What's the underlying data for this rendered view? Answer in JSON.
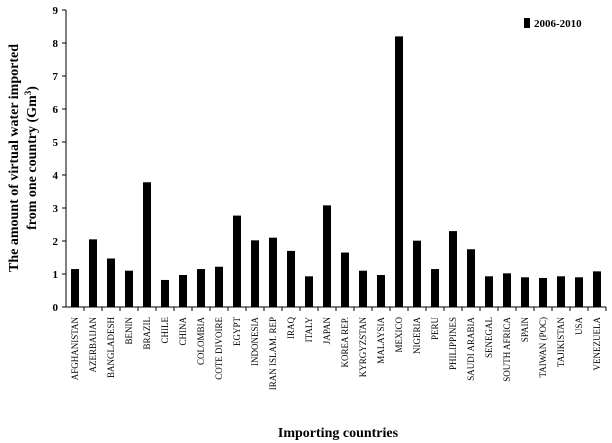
{
  "chart_data": {
    "type": "bar",
    "title": "",
    "xlabel": "Importing countries",
    "ylabel_line1": "The amount of virtual water imported",
    "ylabel_line2_prefix": "from one country (Gm",
    "ylabel_line2_sup": "3",
    "ylabel_line2_suffix": ")",
    "ylim": [
      0,
      9
    ],
    "yticks": [
      "0",
      "1",
      "2",
      "3",
      "4",
      "5",
      "6",
      "7",
      "8",
      "9"
    ],
    "grid": false,
    "legend_position": "top-right",
    "bar_color": "#000000",
    "categories": [
      "AFGHANISTAN",
      "AZERBAIJAN",
      "BANGLADESH",
      "BENIN",
      "BRAZIL",
      "CHILE",
      "CHINA",
      "COLOMBIA",
      "COTE DIVOIRE",
      "EGYPT",
      "INDONESIA",
      "IRAN ISLAM. REP",
      "IRAQ",
      "ITALY",
      "JAPAN",
      "KOREA REP.",
      "KYRGYZSTAN",
      "MALAYSIA",
      "MEXICO",
      "NIGERIA",
      "PERU",
      "PHILIPPINES",
      "SAUDI ARABIA",
      "SENEGAL",
      "SOUTH AFRICA",
      "SPAIN",
      "TAIWAN (POC)",
      "TAJIKISTAN",
      "USA",
      "VENEZUELA"
    ],
    "series": [
      {
        "name": "2006-2010",
        "values": [
          1.15,
          2.05,
          1.47,
          1.1,
          3.78,
          0.82,
          0.97,
          1.15,
          1.22,
          2.77,
          2.02,
          2.1,
          1.7,
          0.93,
          3.08,
          1.65,
          1.1,
          0.97,
          8.2,
          2.01,
          1.15,
          2.3,
          1.75,
          0.93,
          1.02,
          0.9,
          0.88,
          0.93,
          0.9,
          1.08
        ]
      }
    ]
  }
}
